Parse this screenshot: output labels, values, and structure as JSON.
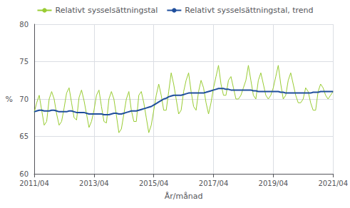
{
  "chart_data": {
    "type": "line",
    "xlabel": "År/månad",
    "ylabel": "%",
    "ylim": [
      60,
      80
    ],
    "yticks": [
      60,
      65,
      70,
      75,
      80
    ],
    "grid": true,
    "legend": "top",
    "categories": [
      "2011/04",
      null,
      null,
      null,
      null,
      null,
      null,
      null,
      null,
      null,
      null,
      null,
      null,
      null,
      null,
      null,
      null,
      null,
      null,
      null,
      null,
      null,
      null,
      null,
      "2013/04",
      null,
      null,
      null,
      null,
      null,
      null,
      null,
      null,
      null,
      null,
      null,
      null,
      null,
      null,
      null,
      null,
      null,
      null,
      null,
      null,
      null,
      null,
      null,
      "2015/04",
      null,
      null,
      null,
      null,
      null,
      null,
      null,
      null,
      null,
      null,
      null,
      null,
      null,
      null,
      null,
      null,
      null,
      null,
      null,
      null,
      null,
      null,
      null,
      "2017/04",
      null,
      null,
      null,
      null,
      null,
      null,
      null,
      null,
      null,
      null,
      null,
      null,
      null,
      null,
      null,
      null,
      null,
      null,
      null,
      null,
      null,
      null,
      null,
      "2019/04",
      null,
      null,
      null,
      null,
      null,
      null,
      null,
      null,
      null,
      null,
      null,
      null,
      null,
      null,
      null,
      null,
      null,
      null,
      null,
      null,
      null,
      null,
      null,
      "2021/04"
    ],
    "series": [
      {
        "name": "Relativt sysselsättningstal",
        "color": "#99cc33",
        "values": [
          68.2,
          69.5,
          70.5,
          68.5,
          66.5,
          67.0,
          70.0,
          71.0,
          70.0,
          68.0,
          66.5,
          67.0,
          68.8,
          70.8,
          71.5,
          69.5,
          67.5,
          67.2,
          70.2,
          71.2,
          69.8,
          68.0,
          66.2,
          67.0,
          68.5,
          70.5,
          71.2,
          69.0,
          67.0,
          66.8,
          70.0,
          71.0,
          70.0,
          67.8,
          65.5,
          66.0,
          68.0,
          70.0,
          71.0,
          68.5,
          67.0,
          67.0,
          70.5,
          71.0,
          69.5,
          67.5,
          65.5,
          66.5,
          68.5,
          70.5,
          72.0,
          70.5,
          68.5,
          68.5,
          71.0,
          73.5,
          72.0,
          70.0,
          68.0,
          68.5,
          71.0,
          72.5,
          73.5,
          71.0,
          69.0,
          68.5,
          71.0,
          72.5,
          71.5,
          69.5,
          68.0,
          69.5,
          71.5,
          73.0,
          74.5,
          72.0,
          70.5,
          70.5,
          72.5,
          73.0,
          71.5,
          70.0,
          70.0,
          70.5,
          71.5,
          72.5,
          74.5,
          72.5,
          70.5,
          70.0,
          72.5,
          73.5,
          72.0,
          70.5,
          70.0,
          70.5,
          71.5,
          73.0,
          74.5,
          72.0,
          70.0,
          70.5,
          72.5,
          73.5,
          72.0,
          70.5,
          69.5,
          69.5,
          70.0,
          71.5,
          71.0,
          69.5,
          68.5,
          68.5,
          71.0,
          72.0,
          71.5,
          70.5,
          70.0,
          70.5,
          71.0
        ]
      },
      {
        "name": "Relativt sysselsättningstal, trend",
        "color": "#1f4e9c",
        "values": [
          68.3,
          68.4,
          68.5,
          68.5,
          68.4,
          68.4,
          68.4,
          68.5,
          68.5,
          68.4,
          68.3,
          68.3,
          68.3,
          68.3,
          68.4,
          68.4,
          68.3,
          68.2,
          68.2,
          68.2,
          68.2,
          68.1,
          68.0,
          68.0,
          68.0,
          68.0,
          68.0,
          68.0,
          67.9,
          67.9,
          67.9,
          68.0,
          68.1,
          68.1,
          68.0,
          68.0,
          68.1,
          68.2,
          68.3,
          68.4,
          68.4,
          68.4,
          68.5,
          68.6,
          68.7,
          68.8,
          68.9,
          69.0,
          69.2,
          69.4,
          69.6,
          69.8,
          70.0,
          70.1,
          70.3,
          70.4,
          70.5,
          70.5,
          70.5,
          70.5,
          70.6,
          70.7,
          70.8,
          70.8,
          70.8,
          70.8,
          70.8,
          70.8,
          70.8,
          70.9,
          71.0,
          71.1,
          71.2,
          71.3,
          71.4,
          71.4,
          71.4,
          71.3,
          71.3,
          71.2,
          71.2,
          71.2,
          71.2,
          71.2,
          71.2,
          71.2,
          71.2,
          71.2,
          71.1,
          71.1,
          71.0,
          71.0,
          71.0,
          71.0,
          71.0,
          71.0,
          71.0,
          71.0,
          71.0,
          70.9,
          70.9,
          70.8,
          70.8,
          70.8,
          70.8,
          70.8,
          70.8,
          70.8,
          70.8,
          70.8,
          70.8,
          70.8,
          70.9,
          70.9,
          70.9,
          71.0,
          71.0,
          71.0,
          71.0,
          71.0,
          71.0
        ]
      }
    ]
  }
}
